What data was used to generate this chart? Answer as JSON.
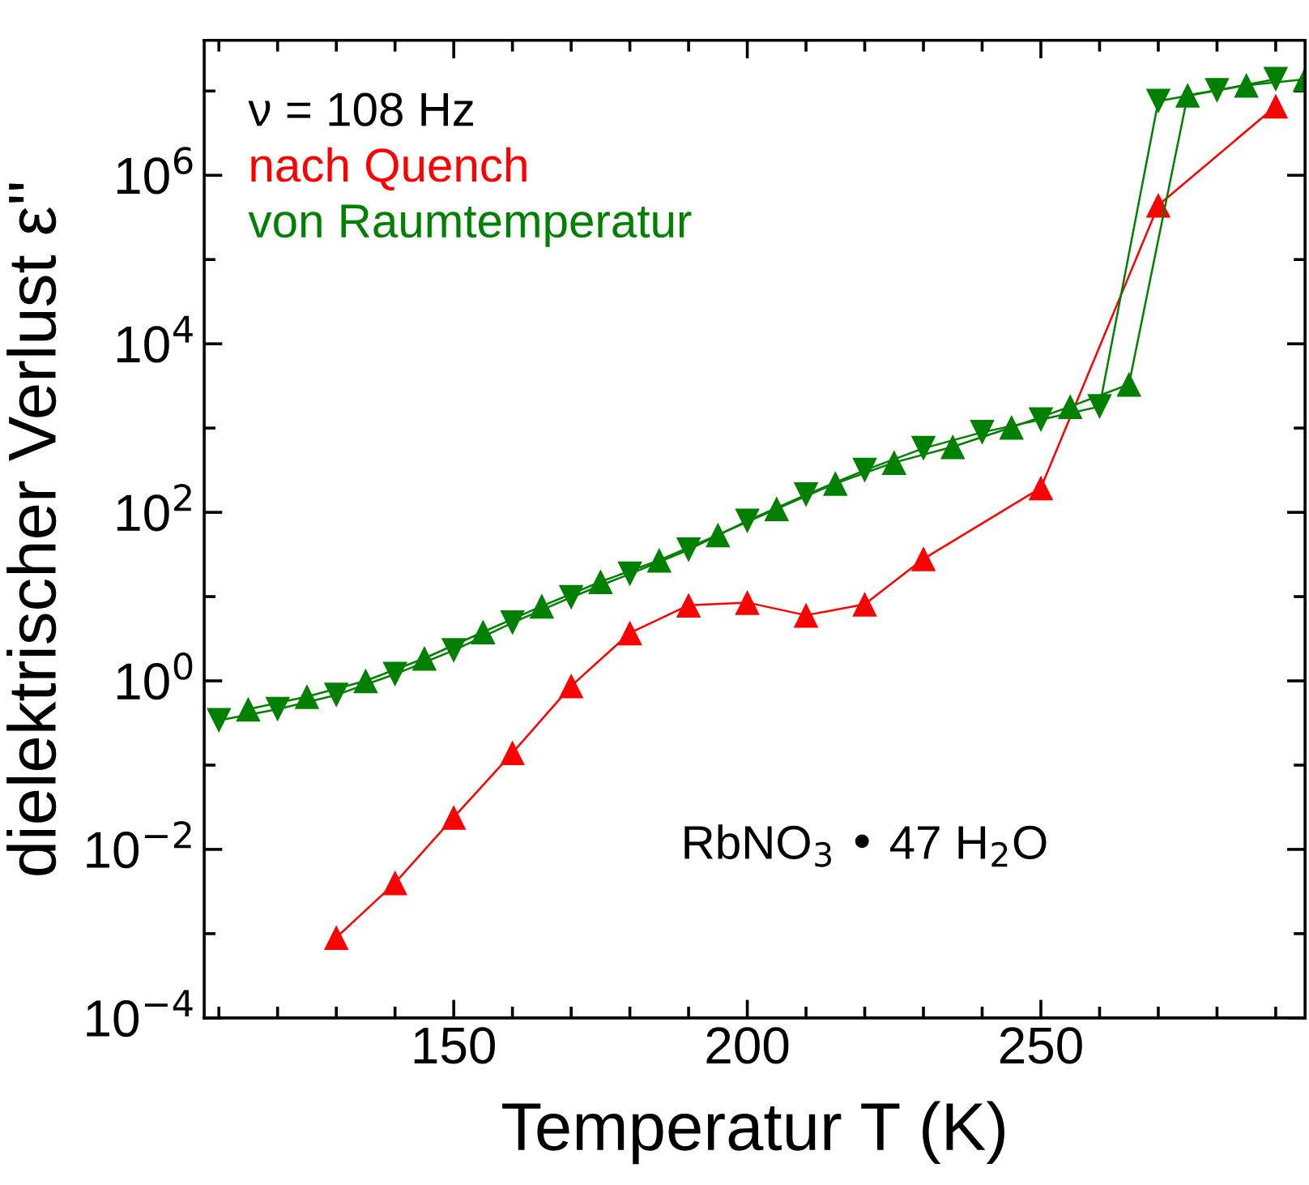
{
  "chart_data": {
    "type": "line",
    "xlabel": "Temperatur T (K)",
    "ylabel": "dielektrischer Verlust ε''",
    "annotations": [
      "ν = 108 Hz",
      "RbNO$_{3}$ • 47 H$_{2}$O"
    ],
    "log": "y",
    "xlim": [
      107.5,
      295
    ],
    "ylim": [
      0.0001,
      40000000
    ],
    "xticks": [
      {
        "value": 110,
        "label": null
      },
      {
        "value": 120,
        "label": null
      },
      {
        "value": 130,
        "label": null
      },
      {
        "value": 140,
        "label": null
      },
      150,
      {
        "value": 160,
        "label": null
      },
      {
        "value": 170,
        "label": null
      },
      {
        "value": 180,
        "label": null
      },
      {
        "value": 190,
        "label": null
      },
      200,
      {
        "value": 210,
        "label": null
      },
      {
        "value": 220,
        "label": null
      },
      {
        "value": 230,
        "label": null
      },
      {
        "value": 240,
        "label": null
      },
      250,
      {
        "value": 260,
        "label": null
      },
      {
        "value": 270,
        "label": null
      },
      {
        "value": 280,
        "label": null
      },
      {
        "value": 290,
        "label": null
      }
    ],
    "yticks": [
      {
        "value": 0.0001,
        "label": "10$^{−4}$"
      },
      {
        "value": 0.001,
        "label": null
      },
      {
        "value": 0.01,
        "label": "10$^{−2}$"
      },
      {
        "value": 0.1,
        "label": null
      },
      {
        "value": 1,
        "label": "10$^{0}$"
      },
      {
        "value": 10,
        "label": null
      },
      {
        "value": 100,
        "label": "10$^{2}$"
      },
      {
        "value": 1000,
        "label": null
      },
      {
        "value": 10000,
        "label": "10$^{4}$"
      },
      {
        "value": 100000,
        "label": null
      },
      {
        "value": 1000000,
        "label": "10$^{6}$"
      },
      {
        "value": 10000000,
        "label": null
      }
    ],
    "grid": false,
    "line_style": "solid",
    "series": [
      {
        "name": "nach Quench",
        "color": "#ff0000",
        "marker": "triangle",
        "x": [
          130,
          140,
          150,
          160,
          170,
          180,
          190,
          200,
          210,
          220,
          230,
          250,
          270,
          290
        ],
        "values": [
          0.0009,
          0.004,
          0.024,
          0.14,
          0.87,
          3.7,
          7.9,
          8.5,
          6.0,
          8.1,
          28,
          195,
          440000,
          6600000
        ]
      },
      {
        "name": "von Raumtemperatur",
        "color": "#008000",
        "marker": "triangle_down",
        "x": [
          110,
          120,
          130,
          140,
          150,
          160,
          170,
          180,
          190,
          200,
          210,
          220,
          230,
          240,
          250,
          260,
          270,
          280,
          290
        ],
        "values": [
          0.34,
          0.46,
          0.68,
          1.2,
          2.3,
          4.9,
          9.8,
          18.6,
          36,
          79,
          162,
          316,
          575,
          890,
          1260,
          1800,
          7600000,
          10200000,
          13800000
        ]
      },
      {
        "color": "#008000",
        "marker": "triangle",
        "x": [
          115,
          125,
          135,
          145,
          155,
          165,
          175,
          185,
          195,
          205,
          215,
          225,
          235,
          245,
          255,
          265,
          275,
          285,
          295
        ],
        "values": [
          0.46,
          0.65,
          1.0,
          1.85,
          3.8,
          7.7,
          15,
          27,
          54,
          110,
          220,
          390,
          600,
          1020,
          1800,
          3300,
          8900000,
          11700000,
          13800000
        ]
      }
    ]
  }
}
